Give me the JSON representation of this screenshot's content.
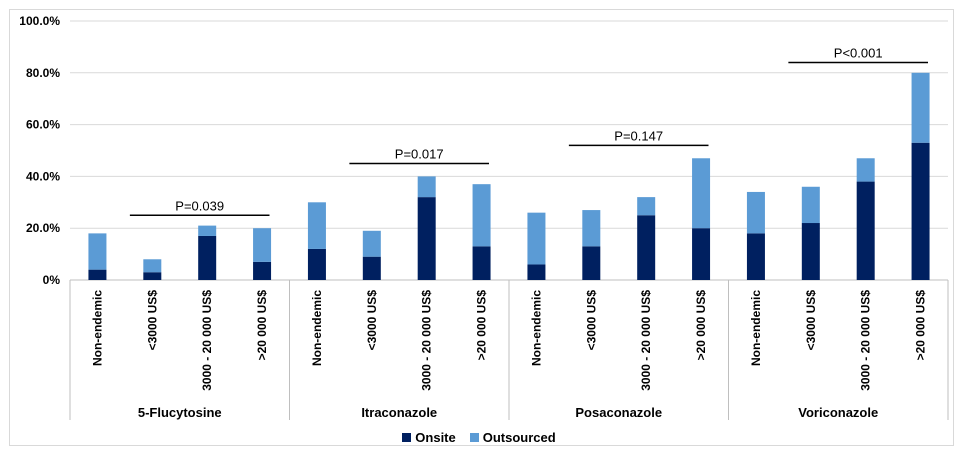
{
  "chart_data": {
    "type": "bar",
    "stacked": true,
    "title": "",
    "ylim": [
      0,
      100
    ],
    "y_ticks": [
      "0%",
      "20.0%",
      "40.0%",
      "60.0%",
      "80.0%",
      "100.0%"
    ],
    "y_tick_values": [
      0,
      20,
      40,
      60,
      80,
      100
    ],
    "grid": true,
    "legend_position": "bottom",
    "groups": [
      {
        "name": "5-Flucytosine",
        "categories": [
          "Non-endemic",
          "<3000 US$",
          "3000 - 20 000 US$",
          ">20 000 US$"
        ]
      },
      {
        "name": "Itraconazole",
        "categories": [
          "Non-endemic",
          "<3000 US$",
          "3000 - 20 000 US$",
          ">20 000 US$"
        ]
      },
      {
        "name": "Posaconazole",
        "categories": [
          "Non-endemic",
          "<3000 US$",
          "3000 - 20 000 US$",
          ">20 000 US$"
        ]
      },
      {
        "name": "Voriconazole",
        "categories": [
          "Non-endemic",
          "<3000 US$",
          "3000 - 20 000 US$",
          ">20 000 US$"
        ]
      }
    ],
    "series": [
      {
        "name": "Onsite",
        "color": "#002060",
        "values": [
          4,
          3,
          17,
          7,
          12,
          9,
          32,
          13,
          6,
          13,
          25,
          20,
          18,
          22,
          38,
          53
        ]
      },
      {
        "name": "Outsourced",
        "color": "#5b9bd5",
        "values": [
          14,
          5,
          4,
          13,
          18,
          10,
          8,
          24,
          20,
          14,
          7,
          27,
          16,
          14,
          9,
          27
        ]
      }
    ],
    "annotations": [
      {
        "text": "P=0.039",
        "group": 0,
        "y": 25
      },
      {
        "text": "P=0.017",
        "group": 1,
        "y": 45
      },
      {
        "text": "P=0.147",
        "group": 2,
        "y": 52
      },
      {
        "text": "P<0.001",
        "group": 3,
        "y": 84
      }
    ]
  }
}
